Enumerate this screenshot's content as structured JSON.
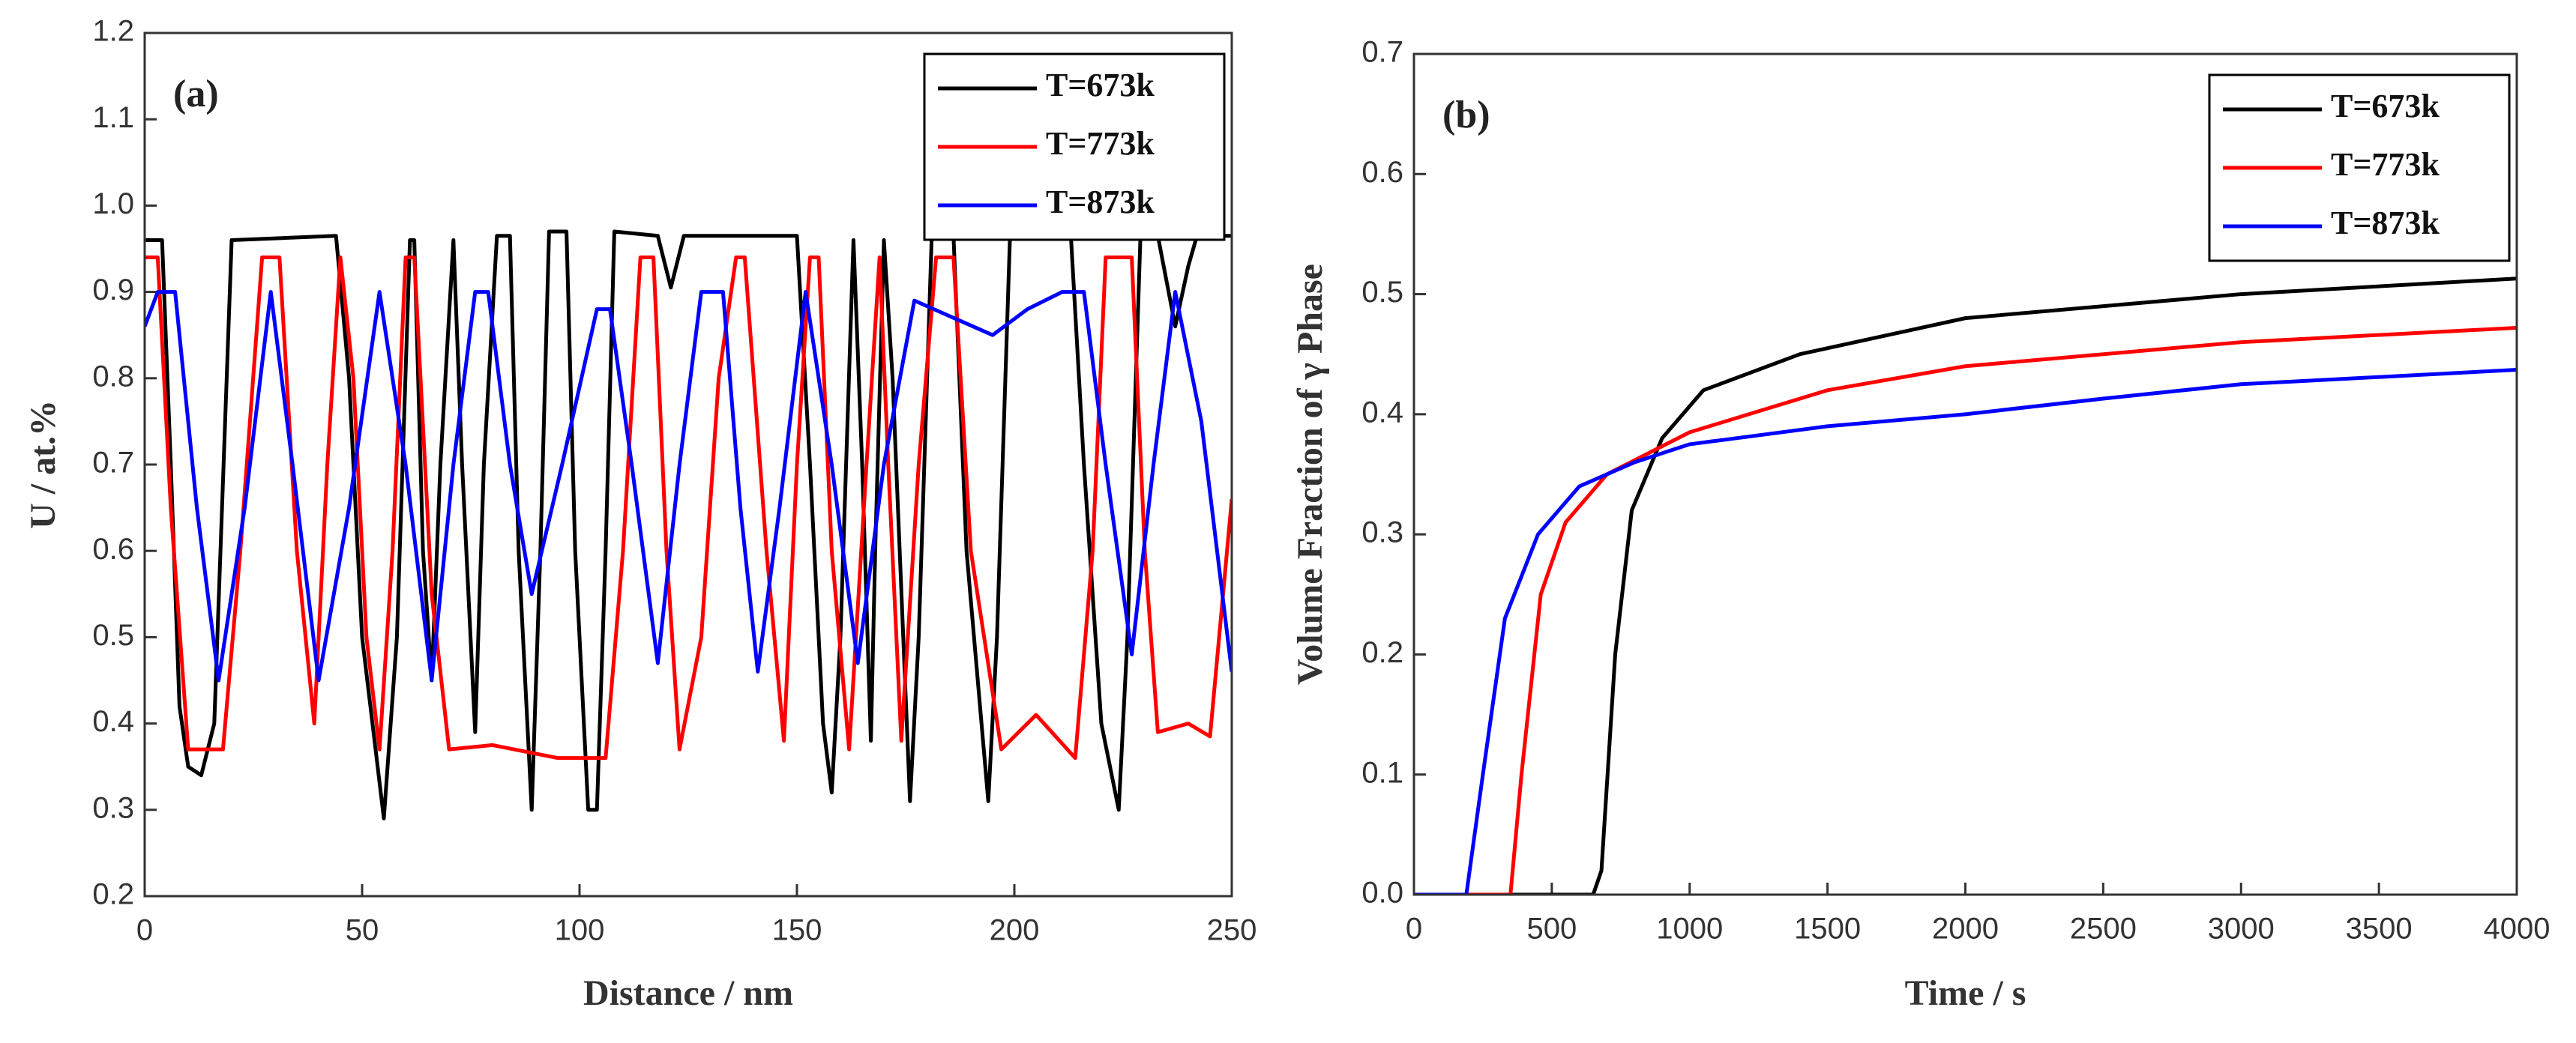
{
  "chart_data": [
    {
      "type": "line",
      "panel_label": "(a)",
      "xlabel": "Distance / nm",
      "ylabel": "U / at.%",
      "xlim": [
        0,
        250
      ],
      "ylim": [
        0.2,
        1.2
      ],
      "xticks": [
        0,
        50,
        100,
        150,
        200,
        250
      ],
      "yticks": [
        0.2,
        0.3,
        0.4,
        0.5,
        0.6,
        0.7,
        0.8,
        0.9,
        {
          "value": 1,
          "label": "1.0"
        },
        1.1,
        1.2
      ],
      "legend": "upper right",
      "series": [
        {
          "name": "T=673k",
          "color": "#000000",
          "x": [
            0,
            4,
            6,
            8,
            10,
            13,
            16,
            20,
            44,
            47,
            50,
            55,
            58,
            61,
            62,
            64,
            66,
            68,
            71,
            73,
            76,
            78,
            81,
            84,
            86,
            89,
            91,
            93,
            97,
            99,
            102,
            104,
            106,
            108,
            118,
            121,
            124,
            150,
            153,
            156,
            158,
            160,
            163,
            165,
            167,
            168,
            170,
            172,
            176,
            178,
            181,
            186,
            189,
            194,
            196,
            199,
            213,
            216,
            220,
            224,
            226,
            229,
            233,
            237,
            240,
            242,
            250
          ],
          "values": [
            0.96,
            0.96,
            0.7,
            0.42,
            0.35,
            0.34,
            0.4,
            0.96,
            0.965,
            0.8,
            0.5,
            0.29,
            0.5,
            0.96,
            0.96,
            0.6,
            0.45,
            0.7,
            0.96,
            0.7,
            0.39,
            0.7,
            0.965,
            0.965,
            0.6,
            0.3,
            0.6,
            0.97,
            0.97,
            0.6,
            0.3,
            0.3,
            0.6,
            0.97,
            0.965,
            0.905,
            0.965,
            0.965,
            0.7,
            0.4,
            0.32,
            0.5,
            0.96,
            0.7,
            0.38,
            0.6,
            0.96,
            0.8,
            0.31,
            0.5,
            0.965,
            0.965,
            0.6,
            0.31,
            0.5,
            0.965,
            0.965,
            0.7,
            0.4,
            0.3,
            0.5,
            0.965,
            0.965,
            0.86,
            0.93,
            0.965,
            0.965
          ]
        },
        {
          "name": "T=773k",
          "color": "#ff0000",
          "x": [
            0,
            3,
            6,
            10,
            18,
            22,
            27,
            31,
            35,
            39,
            42,
            45,
            48,
            51,
            54,
            57,
            60,
            62,
            66,
            70,
            80,
            95,
            106,
            110,
            114,
            117,
            120,
            123,
            128,
            132,
            136,
            138,
            143,
            147,
            150,
            153,
            155,
            158,
            162,
            166,
            169,
            171,
            174,
            178,
            182,
            186,
            190,
            197,
            205,
            214,
            218,
            221,
            227,
            230,
            233,
            240,
            245,
            250
          ],
          "values": [
            0.94,
            0.94,
            0.65,
            0.37,
            0.37,
            0.6,
            0.94,
            0.94,
            0.6,
            0.4,
            0.7,
            0.94,
            0.8,
            0.5,
            0.37,
            0.6,
            0.94,
            0.94,
            0.55,
            0.37,
            0.375,
            0.36,
            0.36,
            0.6,
            0.94,
            0.94,
            0.6,
            0.37,
            0.5,
            0.8,
            0.94,
            0.94,
            0.6,
            0.38,
            0.7,
            0.94,
            0.94,
            0.6,
            0.37,
            0.7,
            0.94,
            0.7,
            0.38,
            0.7,
            0.94,
            0.94,
            0.6,
            0.37,
            0.41,
            0.36,
            0.6,
            0.94,
            0.94,
            0.6,
            0.39,
            0.4,
            0.385,
            0.66
          ]
        },
        {
          "name": "T=873k",
          "color": "#0000ff",
          "x": [
            0,
            3,
            7,
            12,
            17,
            23,
            29,
            34,
            40,
            47,
            54,
            60,
            66,
            71,
            76,
            79,
            84,
            89,
            96,
            104,
            107,
            112,
            118,
            123,
            128,
            133,
            137,
            141,
            146,
            152,
            158,
            164,
            170,
            177,
            186,
            195,
            203,
            211,
            216,
            221,
            227,
            232,
            237,
            243,
            250
          ],
          "values": [
            0.86,
            0.9,
            0.9,
            0.65,
            0.45,
            0.65,
            0.9,
            0.7,
            0.45,
            0.65,
            0.9,
            0.7,
            0.45,
            0.7,
            0.9,
            0.9,
            0.7,
            0.55,
            0.7,
            0.88,
            0.88,
            0.7,
            0.47,
            0.7,
            0.9,
            0.9,
            0.65,
            0.46,
            0.65,
            0.9,
            0.7,
            0.47,
            0.7,
            0.89,
            0.87,
            0.85,
            0.88,
            0.9,
            0.9,
            0.7,
            0.48,
            0.7,
            0.9,
            0.75,
            0.46
          ]
        }
      ]
    },
    {
      "type": "line",
      "panel_label": "(b)",
      "xlabel": "Time / s",
      "ylabel": "Volume Fraction of γ Phase",
      "xlim": [
        0,
        4000
      ],
      "ylim": [
        0,
        0.7
      ],
      "xticks": [
        0,
        500,
        1000,
        1500,
        2000,
        2500,
        3000,
        3500,
        4000
      ],
      "yticks": [
        {
          "value": 0,
          "label": "0.0"
        },
        0.1,
        0.2,
        0.3,
        0.4,
        0.5,
        0.6,
        0.7
      ],
      "legend": "upper right",
      "series": [
        {
          "name": "T=673k",
          "color": "#000000",
          "x": [
            0,
            650,
            680,
            730,
            790,
            900,
            1050,
            1400,
            2000,
            3000,
            4000
          ],
          "values": [
            0,
            0,
            0.02,
            0.2,
            0.32,
            0.38,
            0.42,
            0.45,
            0.48,
            0.5,
            0.513
          ]
        },
        {
          "name": "T=773k",
          "color": "#ff0000",
          "x": [
            0,
            350,
            390,
            460,
            550,
            700,
            1000,
            1500,
            2000,
            3000,
            4000
          ],
          "values": [
            0,
            0,
            0.1,
            0.25,
            0.31,
            0.35,
            0.385,
            0.42,
            0.44,
            0.46,
            0.472
          ]
        },
        {
          "name": "T=873k",
          "color": "#0000ff",
          "x": [
            0,
            190,
            250,
            330,
            450,
            600,
            800,
            1000,
            1500,
            2000,
            2500,
            3000,
            4000
          ],
          "values": [
            0,
            0,
            0.1,
            0.23,
            0.3,
            0.34,
            0.36,
            0.375,
            0.39,
            0.4,
            0.413,
            0.425,
            0.437
          ]
        }
      ]
    }
  ]
}
